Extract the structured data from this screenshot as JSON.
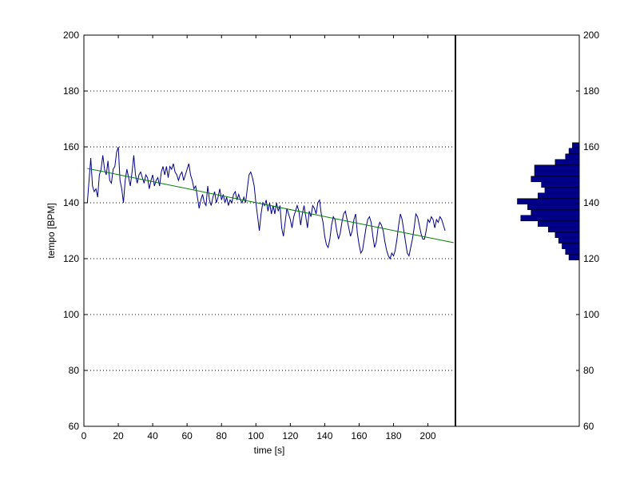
{
  "chart_data": [
    {
      "type": "line",
      "xlabel": "time [s]",
      "ylabel": "tempo [BPM]",
      "xlim": [
        0,
        216
      ],
      "ylim": [
        60,
        200
      ],
      "x_ticks": [
        "0",
        "20",
        "40",
        "60",
        "80",
        "100",
        "120",
        "140",
        "160",
        "180",
        "200"
      ],
      "y_ticks": [
        "60",
        "80",
        "100",
        "120",
        "140",
        "160",
        "180",
        "200"
      ],
      "grid": "horizontal dotted",
      "series": [
        {
          "color": "#00008b",
          "points": [
            [
              2,
              140
            ],
            [
              3,
              148
            ],
            [
              4,
              156
            ],
            [
              5,
              146
            ],
            [
              6,
              144
            ],
            [
              7,
              145
            ],
            [
              8,
              142
            ],
            [
              9,
              150
            ],
            [
              10,
              152
            ],
            [
              11,
              157
            ],
            [
              12,
              152
            ],
            [
              13,
              150
            ],
            [
              14,
              155
            ],
            [
              15,
              148
            ],
            [
              16,
              147
            ],
            [
              17,
              152
            ],
            [
              18,
              153
            ],
            [
              19,
              158
            ],
            [
              20,
              160
            ],
            [
              21,
              148
            ],
            [
              22,
              145
            ],
            [
              23,
              140
            ],
            [
              24,
              148
            ],
            [
              25,
              152
            ],
            [
              26,
              149
            ],
            [
              27,
              146
            ],
            [
              28,
              151
            ],
            [
              29,
              157
            ],
            [
              30,
              150
            ],
            [
              31,
              147
            ],
            [
              32,
              150
            ],
            [
              33,
              151
            ],
            [
              34,
              149
            ],
            [
              35,
              147
            ],
            [
              36,
              150
            ],
            [
              37,
              149
            ],
            [
              38,
              145
            ],
            [
              39,
              148
            ],
            [
              40,
              150
            ],
            [
              41,
              146
            ],
            [
              42,
              148
            ],
            [
              43,
              149
            ],
            [
              44,
              146
            ],
            [
              45,
              151
            ],
            [
              46,
              153
            ],
            [
              47,
              150
            ],
            [
              48,
              153
            ],
            [
              49,
              149
            ],
            [
              50,
              153
            ],
            [
              51,
              152
            ],
            [
              52,
              154
            ],
            [
              53,
              151
            ],
            [
              54,
              150
            ],
            [
              55,
              148
            ],
            [
              56,
              150
            ],
            [
              57,
              151
            ],
            [
              58,
              148
            ],
            [
              59,
              150
            ],
            [
              60,
              152
            ],
            [
              61,
              154
            ],
            [
              62,
              150
            ],
            [
              63,
              148
            ],
            [
              64,
              145
            ],
            [
              65,
              146
            ],
            [
              66,
              142
            ],
            [
              67,
              138
            ],
            [
              68,
              141
            ],
            [
              69,
              143
            ],
            [
              70,
              140
            ],
            [
              71,
              139
            ],
            [
              72,
              146
            ],
            [
              73,
              141
            ],
            [
              74,
              139
            ],
            [
              75,
              142
            ],
            [
              76,
              144
            ],
            [
              77,
              140
            ],
            [
              78,
              142
            ],
            [
              79,
              145
            ],
            [
              80,
              141
            ],
            [
              81,
              143
            ],
            [
              82,
              140
            ],
            [
              83,
              142
            ],
            [
              84,
              139
            ],
            [
              85,
              141
            ],
            [
              86,
              140
            ],
            [
              87,
              143
            ],
            [
              88,
              144
            ],
            [
              89,
              141
            ],
            [
              90,
              143
            ],
            [
              91,
              141
            ],
            [
              92,
              140
            ],
            [
              93,
              142
            ],
            [
              94,
              140
            ],
            [
              95,
              145
            ],
            [
              96,
              150
            ],
            [
              97,
              151
            ],
            [
              98,
              149
            ],
            [
              99,
              146
            ],
            [
              100,
              140
            ],
            [
              101,
              135
            ],
            [
              102,
              130
            ],
            [
              103,
              136
            ],
            [
              104,
              140
            ],
            [
              105,
              139
            ],
            [
              106,
              141
            ],
            [
              107,
              137
            ],
            [
              108,
              140
            ],
            [
              109,
              136
            ],
            [
              110,
              139
            ],
            [
              111,
              136
            ],
            [
              112,
              140
            ],
            [
              113,
              137
            ],
            [
              114,
              139
            ],
            [
              115,
              131
            ],
            [
              116,
              128
            ],
            [
              117,
              133
            ],
            [
              118,
              138
            ],
            [
              119,
              136
            ],
            [
              120,
              134
            ],
            [
              121,
              131
            ],
            [
              122,
              135
            ],
            [
              123,
              137
            ],
            [
              124,
              139
            ],
            [
              125,
              137
            ],
            [
              126,
              132
            ],
            [
              127,
              136
            ],
            [
              128,
              139
            ],
            [
              129,
              135
            ],
            [
              130,
              131
            ],
            [
              131,
              137
            ],
            [
              132,
              135
            ],
            [
              133,
              139
            ],
            [
              134,
              138
            ],
            [
              135,
              136
            ],
            [
              136,
              140
            ],
            [
              137,
              141
            ],
            [
              138,
              136
            ],
            [
              139,
              133
            ],
            [
              140,
              128
            ],
            [
              141,
              125
            ],
            [
              142,
              124
            ],
            [
              143,
              127
            ],
            [
              144,
              132
            ],
            [
              145,
              135
            ],
            [
              146,
              134
            ],
            [
              147,
              130
            ],
            [
              148,
              127
            ],
            [
              149,
              129
            ],
            [
              150,
              133
            ],
            [
              151,
              136
            ],
            [
              152,
              137
            ],
            [
              153,
              134
            ],
            [
              154,
              131
            ],
            [
              155,
              128
            ],
            [
              156,
              130
            ],
            [
              157,
              134
            ],
            [
              158,
              136
            ],
            [
              159,
              129
            ],
            [
              160,
              125
            ],
            [
              161,
              122
            ],
            [
              162,
              123
            ],
            [
              163,
              127
            ],
            [
              164,
              131
            ],
            [
              165,
              134
            ],
            [
              166,
              135
            ],
            [
              167,
              133
            ],
            [
              168,
              128
            ],
            [
              169,
              124
            ],
            [
              170,
              126
            ],
            [
              171,
              131
            ],
            [
              172,
              133
            ],
            [
              173,
              132
            ],
            [
              174,
              130
            ],
            [
              175,
              126
            ],
            [
              176,
              123
            ],
            [
              177,
              121
            ],
            [
              178,
              120
            ],
            [
              179,
              122
            ],
            [
              180,
              121
            ],
            [
              181,
              123
            ],
            [
              182,
              127
            ],
            [
              183,
              132
            ],
            [
              184,
              136
            ],
            [
              185,
              134
            ],
            [
              186,
              130
            ],
            [
              187,
              126
            ],
            [
              188,
              122
            ],
            [
              189,
              121
            ],
            [
              190,
              124
            ],
            [
              191,
              127
            ],
            [
              192,
              131
            ],
            [
              193,
              136
            ],
            [
              194,
              135
            ],
            [
              195,
              132
            ],
            [
              196,
              129
            ],
            [
              197,
              127
            ],
            [
              198,
              127
            ],
            [
              199,
              130
            ],
            [
              200,
              134
            ],
            [
              201,
              133
            ],
            [
              202,
              135
            ],
            [
              203,
              134
            ],
            [
              204,
              131
            ],
            [
              205,
              134
            ],
            [
              206,
              133
            ],
            [
              207,
              135
            ],
            [
              208,
              134
            ],
            [
              209,
              132
            ],
            [
              210,
              130
            ]
          ]
        },
        {
          "color": "#008000",
          "points": [
            [
              2,
              152.3
            ],
            [
              215,
              125.7
            ]
          ]
        }
      ]
    },
    {
      "type": "bar",
      "orientation": "horizontal",
      "ylim": [
        60,
        200
      ],
      "y_ticks": [
        "60",
        "80",
        "100",
        "120",
        "140",
        "160",
        "180",
        "200"
      ],
      "bar_color": "#00008b",
      "bins": [
        {
          "y0": 119.5,
          "y1": 121.5,
          "count": 3
        },
        {
          "y0": 121.5,
          "y1": 123.5,
          "count": 4
        },
        {
          "y0": 123.5,
          "y1": 125.5,
          "count": 5
        },
        {
          "y0": 125.5,
          "y1": 127.5,
          "count": 6
        },
        {
          "y0": 127.5,
          "y1": 129.5,
          "count": 7
        },
        {
          "y0": 129.5,
          "y1": 131.5,
          "count": 9
        },
        {
          "y0": 131.5,
          "y1": 133.5,
          "count": 12
        },
        {
          "y0": 133.5,
          "y1": 135.5,
          "count": 17
        },
        {
          "y0": 135.5,
          "y1": 137.5,
          "count": 14
        },
        {
          "y0": 137.5,
          "y1": 139.5,
          "count": 15
        },
        {
          "y0": 139.5,
          "y1": 141.5,
          "count": 18
        },
        {
          "y0": 141.5,
          "y1": 143.5,
          "count": 12
        },
        {
          "y0": 143.5,
          "y1": 145.5,
          "count": 10
        },
        {
          "y0": 145.5,
          "y1": 147.5,
          "count": 11
        },
        {
          "y0": 147.5,
          "y1": 149.5,
          "count": 14
        },
        {
          "y0": 149.5,
          "y1": 151.5,
          "count": 13
        },
        {
          "y0": 151.5,
          "y1": 153.5,
          "count": 13
        },
        {
          "y0": 153.5,
          "y1": 155.5,
          "count": 7
        },
        {
          "y0": 155.5,
          "y1": 157.5,
          "count": 4
        },
        {
          "y0": 157.5,
          "y1": 159.5,
          "count": 3
        },
        {
          "y0": 159.5,
          "y1": 161.5,
          "count": 2
        }
      ],
      "max_count": 36
    }
  ]
}
